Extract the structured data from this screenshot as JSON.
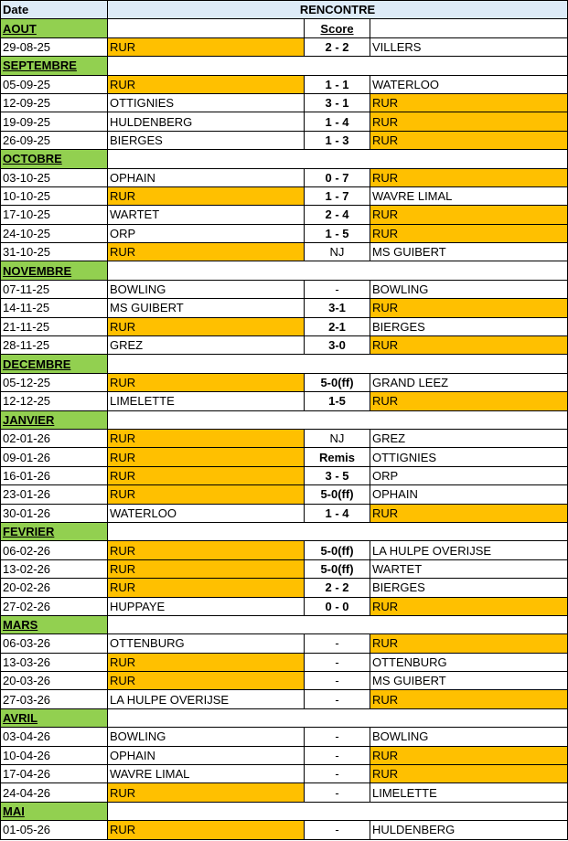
{
  "header": {
    "date_label": "Date",
    "title": "RENCONTRE",
    "score_label": "Score"
  },
  "colors": {
    "highlight": "#FFC000",
    "month": "#92D050",
    "header": "#DDEBF7"
  },
  "months": [
    {
      "name": "AOUT",
      "matches": [
        {
          "date": "29-08-25",
          "home": "RUR",
          "score": "2 - 2",
          "away": "VILLERS"
        }
      ]
    },
    {
      "name": "SEPTEMBRE",
      "matches": [
        {
          "date": "05-09-25",
          "home": "RUR",
          "score": "1 - 1",
          "away": "WATERLOO"
        },
        {
          "date": "12-09-25",
          "home": "OTTIGNIES",
          "score": "3 - 1",
          "away": "RUR"
        },
        {
          "date": "19-09-25",
          "home": "HULDENBERG",
          "score": "1 - 4",
          "away": "RUR"
        },
        {
          "date": "26-09-25",
          "home": "BIERGES",
          "score": "1 - 3",
          "away": "RUR"
        }
      ]
    },
    {
      "name": "OCTOBRE",
      "matches": [
        {
          "date": "03-10-25",
          "home": "OPHAIN",
          "score": "0 - 7",
          "away": "RUR"
        },
        {
          "date": "10-10-25",
          "home": "RUR",
          "score": "1 - 7",
          "away": "WAVRE LIMAL"
        },
        {
          "date": "17-10-25",
          "home": "WARTET",
          "score": "2 - 4",
          "away": "RUR"
        },
        {
          "date": "24-10-25",
          "home": "ORP",
          "score": "1 - 5",
          "away": "RUR"
        },
        {
          "date": "31-10-25",
          "home": "RUR",
          "score": "NJ",
          "away": "MS GUIBERT"
        }
      ]
    },
    {
      "name": "NOVEMBRE",
      "matches": [
        {
          "date": "07-11-25",
          "home": "BOWLING",
          "score": "-",
          "away": "BOWLING"
        },
        {
          "date": "14-11-25",
          "home": "MS GUIBERT",
          "score": "3-1",
          "away": "RUR"
        },
        {
          "date": "21-11-25",
          "home": "RUR",
          "score": "2-1",
          "away": "BIERGES"
        },
        {
          "date": "28-11-25",
          "home": "GREZ",
          "score": "3-0",
          "away": "RUR"
        }
      ]
    },
    {
      "name": "DECEMBRE",
      "matches": [
        {
          "date": "05-12-25",
          "home": "RUR",
          "score": "5-0(ff)",
          "away": "GRAND LEEZ"
        },
        {
          "date": "12-12-25",
          "home": "LIMELETTE",
          "score": "1-5",
          "away": "RUR"
        }
      ]
    },
    {
      "name": "JANVIER",
      "matches": [
        {
          "date": "02-01-26",
          "home": "RUR",
          "score": "NJ",
          "away": "GREZ"
        },
        {
          "date": "09-01-26",
          "home": "RUR",
          "score": "Remis",
          "away": "OTTIGNIES"
        },
        {
          "date": "16-01-26",
          "home": "RUR",
          "score": "3 - 5",
          "away": "ORP"
        },
        {
          "date": "23-01-26",
          "home": "RUR",
          "score": "5-0(ff)",
          "away": "OPHAIN"
        },
        {
          "date": "30-01-26",
          "home": "WATERLOO",
          "score": "1 - 4",
          "away": "RUR"
        }
      ]
    },
    {
      "name": "FEVRIER",
      "matches": [
        {
          "date": "06-02-26",
          "home": "RUR",
          "score": "5-0(ff)",
          "away": "LA HULPE OVERIJSE"
        },
        {
          "date": "13-02-26",
          "home": "RUR",
          "score": "5-0(ff)",
          "away": "WARTET"
        },
        {
          "date": "20-02-26",
          "home": "RUR",
          "score": "2 - 2",
          "away": "BIERGES"
        },
        {
          "date": "27-02-26",
          "home": "HUPPAYE",
          "score": "0 - 0",
          "away": "RUR"
        }
      ]
    },
    {
      "name": "MARS",
      "matches": [
        {
          "date": "06-03-26",
          "home": "OTTENBURG",
          "score": "-",
          "away": "RUR"
        },
        {
          "date": "13-03-26",
          "home": "RUR",
          "score": "-",
          "away": "OTTENBURG"
        },
        {
          "date": "20-03-26",
          "home": "RUR",
          "score": "-",
          "away": "MS GUIBERT"
        },
        {
          "date": "27-03-26",
          "home": "LA HULPE OVERIJSE",
          "score": "-",
          "away": "RUR"
        }
      ]
    },
    {
      "name": "AVRIL",
      "matches": [
        {
          "date": "03-04-26",
          "home": "BOWLING",
          "score": "-",
          "away": "BOWLING"
        },
        {
          "date": "10-04-26",
          "home": "OPHAIN",
          "score": "-",
          "away": "RUR"
        },
        {
          "date": "17-04-26",
          "home": "WAVRE LIMAL",
          "score": "-",
          "away": "RUR"
        },
        {
          "date": "24-04-26",
          "home": "RUR",
          "score": "-",
          "away": "LIMELETTE"
        }
      ]
    },
    {
      "name": "MAI",
      "matches": [
        {
          "date": "01-05-26",
          "home": "RUR",
          "score": "-",
          "away": "HULDENBERG"
        }
      ]
    }
  ]
}
